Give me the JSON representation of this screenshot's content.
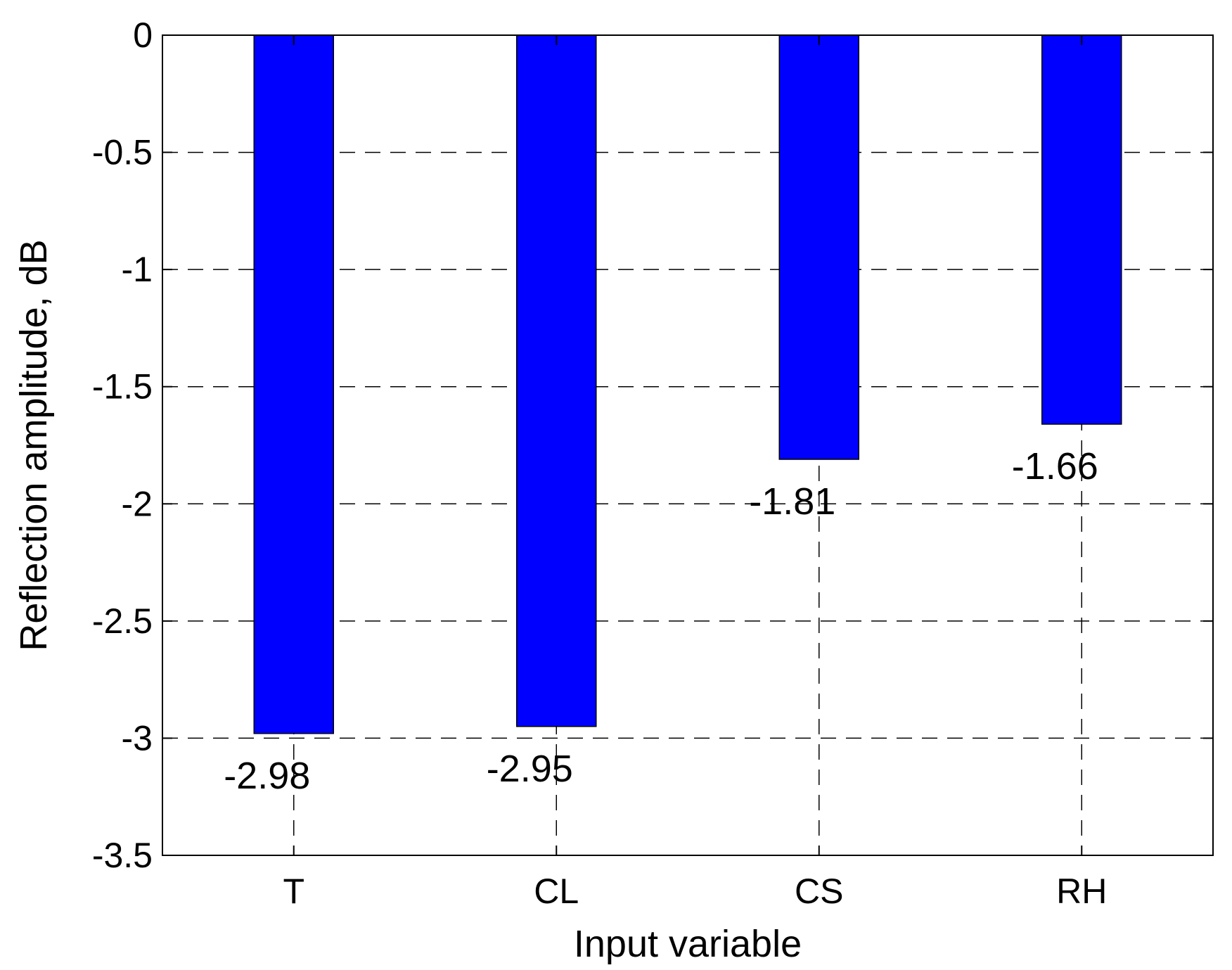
{
  "chart_data": {
    "type": "bar",
    "categories": [
      "T",
      "CL",
      "CS",
      "RH"
    ],
    "values": [
      -2.98,
      -2.95,
      -1.81,
      -1.66
    ],
    "data_labels": [
      "-2.98",
      "-2.95",
      "-1.81",
      "-1.66"
    ],
    "xlabel": "Input variable",
    "ylabel": "Reflection amplitude, dB",
    "ylim": [
      -3.5,
      0
    ],
    "yticks": [
      0,
      -0.5,
      -1,
      -1.5,
      -2,
      -2.5,
      -3,
      -3.5
    ],
    "ytick_labels": [
      "0",
      "-0.5",
      "-1",
      "-1.5",
      "-2",
      "-2.5",
      "-3",
      "-3.5"
    ],
    "grid": "dashed",
    "bar_color": "#0000ff"
  }
}
